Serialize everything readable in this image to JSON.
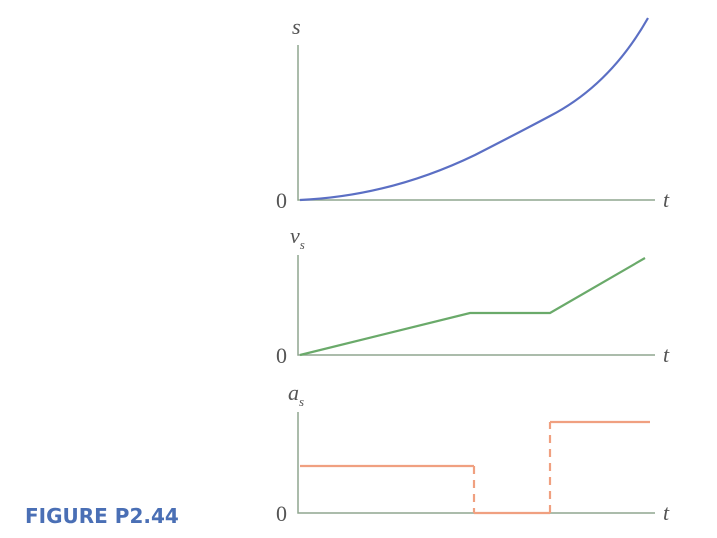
{
  "figure_label": "FIGURE P2.44",
  "panels": [
    {
      "y_label": "s",
      "origin": "0",
      "x_label": "t"
    },
    {
      "y_label": {
        "base": "v",
        "sub": "s"
      },
      "origin": "0",
      "x_label": "t"
    },
    {
      "y_label": {
        "base": "a",
        "sub": "s"
      },
      "origin": "0",
      "x_label": "t"
    }
  ]
}
